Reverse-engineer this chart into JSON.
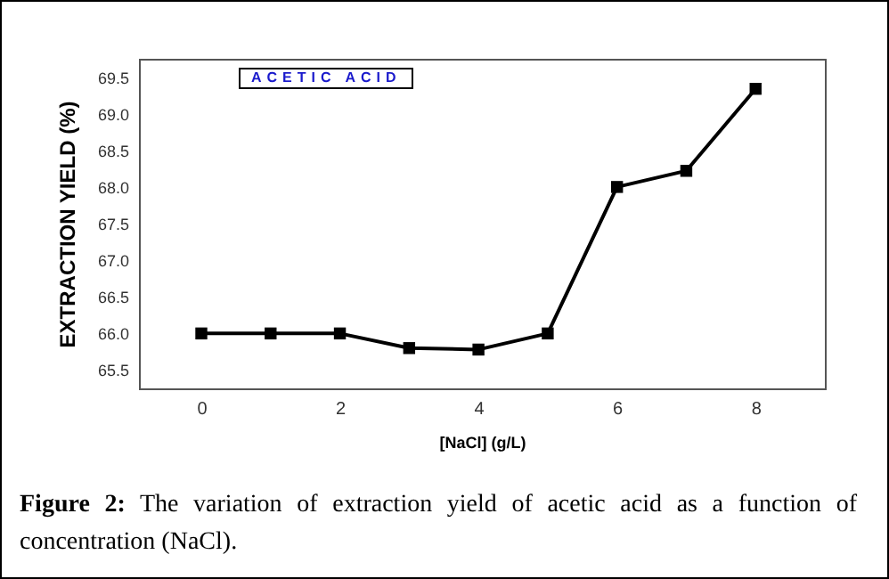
{
  "chart_data": {
    "type": "line",
    "xlabel": "[NaCl] (g/L)",
    "ylabel": "EXTRACTION YIELD (%)",
    "x": [
      0,
      1,
      2,
      3,
      4,
      5,
      6,
      7,
      8
    ],
    "series": [
      {
        "color": "#000000",
        "values": [
          66.0,
          66.0,
          66.0,
          65.8,
          65.78,
          66.0,
          68.0,
          68.22,
          69.34
        ]
      }
    ],
    "xlim": [
      -0.9,
      9
    ],
    "xticks": [
      0,
      2,
      4,
      6,
      8
    ],
    "ylim": [
      65.25,
      69.75
    ],
    "yticks": [
      65.5,
      {
        "value": 66,
        "label": "66.0"
      },
      66.5,
      {
        "value": 67,
        "label": "67.0"
      },
      67.5,
      {
        "value": 68,
        "label": "68.0"
      },
      68.5,
      {
        "value": 69,
        "label": "69.0"
      },
      69.5
    ],
    "marker": "square",
    "line_style": "solid",
    "grid": false,
    "annotations": [
      "ACETIC ACID",
      "Figure 2: The variation of extraction yield of acetic acid as a function of concentration (NaCl)."
    ]
  }
}
